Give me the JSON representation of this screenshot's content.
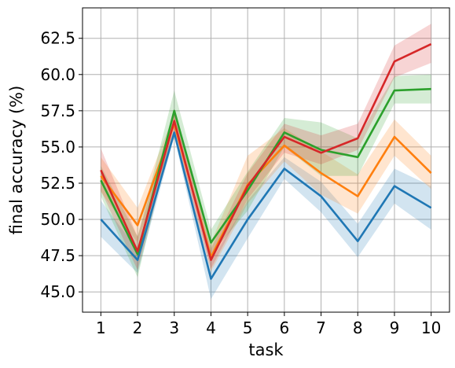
{
  "chart_data": {
    "type": "line",
    "title": "",
    "xlabel": "task",
    "ylabel": "final accuracy (%)",
    "x": [
      1,
      2,
      3,
      4,
      5,
      6,
      7,
      8,
      9,
      10
    ],
    "x_ticks": [
      "1",
      "2",
      "3",
      "4",
      "5",
      "6",
      "7",
      "8",
      "9",
      "10"
    ],
    "y_ticks": [
      "45.0",
      "47.5",
      "50.0",
      "52.5",
      "55.0",
      "57.5",
      "60.0",
      "62.5"
    ],
    "xlim": [
      0.5,
      10.5
    ],
    "ylim": [
      43.6,
      64.6
    ],
    "grid": true,
    "legend": "none",
    "series": [
      {
        "color": "#1f77b4",
        "values": [
          50.0,
          47.2,
          56.0,
          45.9,
          50.0,
          53.5,
          51.6,
          48.5,
          52.3,
          50.8
        ],
        "lower": [
          48.8,
          46.3,
          55.7,
          44.5,
          48.7,
          52.8,
          50.5,
          47.4,
          51.1,
          49.3
        ],
        "upper": [
          51.3,
          47.9,
          56.3,
          47.1,
          51.3,
          54.3,
          52.6,
          49.7,
          53.5,
          52.3
        ]
      },
      {
        "color": "#ff7f0e",
        "values": [
          53.0,
          49.6,
          56.6,
          47.4,
          52.4,
          55.1,
          53.2,
          51.6,
          55.7,
          53.2
        ],
        "lower": [
          51.9,
          48.4,
          55.9,
          46.4,
          51.1,
          54.0,
          51.7,
          50.4,
          54.4,
          52.1
        ],
        "upper": [
          54.3,
          50.8,
          57.3,
          48.4,
          54.4,
          56.3,
          54.7,
          53.1,
          56.9,
          54.4
        ]
      },
      {
        "color": "#2ca02c",
        "values": [
          52.7,
          47.6,
          57.5,
          48.4,
          52.0,
          56.0,
          54.8,
          54.3,
          58.9,
          59.0
        ],
        "lower": [
          51.6,
          46.0,
          56.6,
          47.6,
          50.6,
          55.0,
          53.0,
          53.0,
          58.0,
          58.0
        ],
        "upper": [
          53.7,
          48.8,
          58.9,
          49.3,
          53.3,
          57.0,
          56.7,
          55.6,
          59.9,
          60.0
        ]
      },
      {
        "color": "#d62728",
        "values": [
          53.4,
          47.8,
          56.8,
          47.2,
          52.3,
          55.7,
          54.6,
          55.6,
          60.9,
          62.1
        ],
        "lower": [
          52.0,
          46.5,
          56.1,
          46.6,
          51.4,
          54.6,
          53.8,
          54.8,
          59.8,
          60.8
        ],
        "upper": [
          54.9,
          48.8,
          57.5,
          48.0,
          53.2,
          56.6,
          55.8,
          56.6,
          62.0,
          63.5
        ]
      }
    ]
  }
}
